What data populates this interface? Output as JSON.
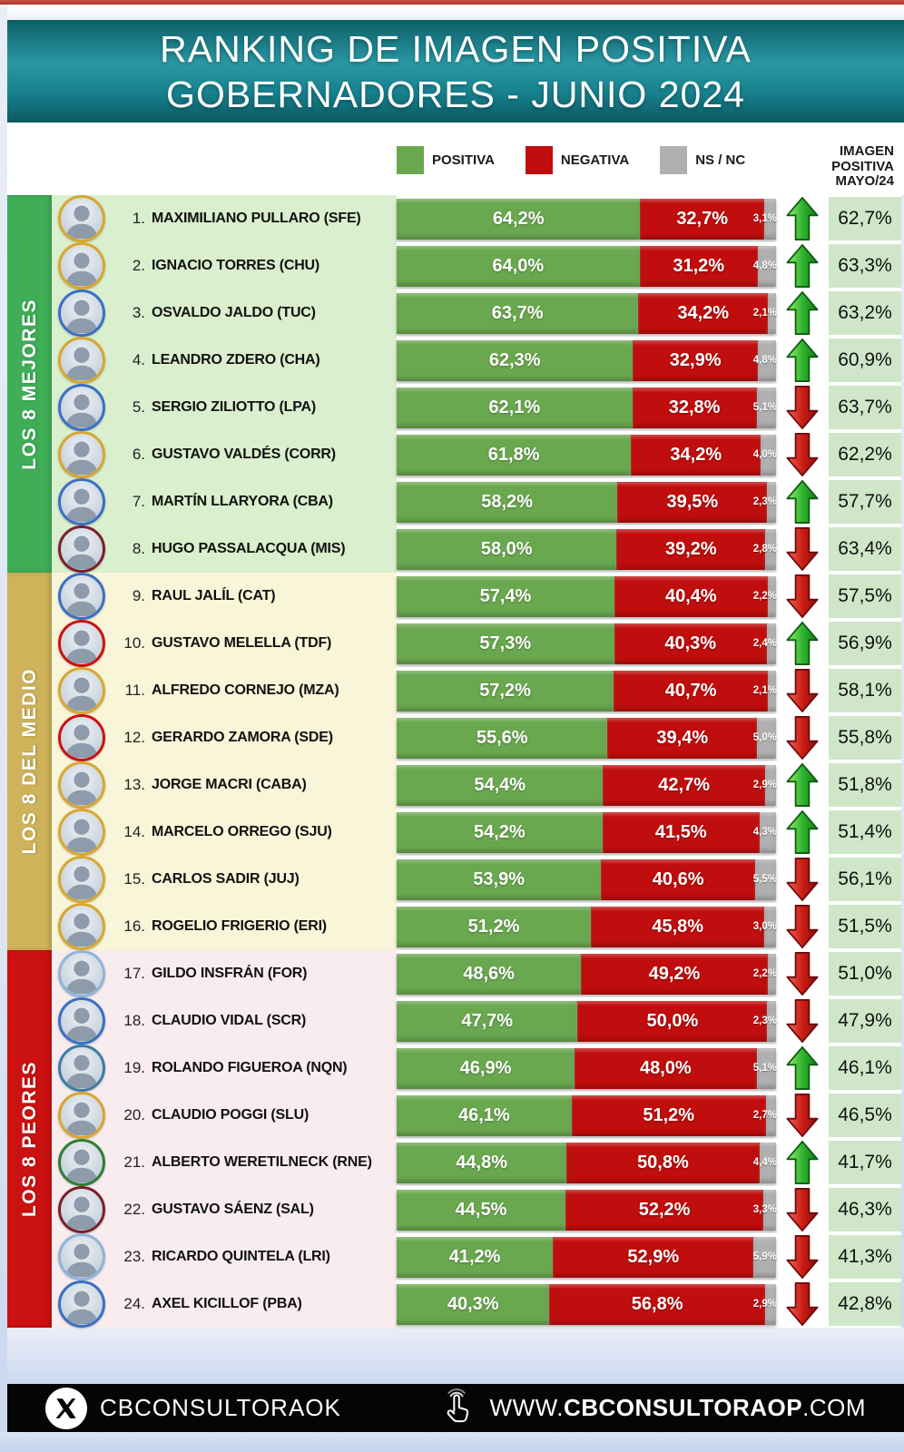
{
  "title": {
    "line1": "RANKING DE IMAGEN POSITIVA",
    "line2": "GOBERNADORES - JUNIO 2024"
  },
  "legend": [
    {
      "label": "POSITIVA",
      "color": "#6aa84f"
    },
    {
      "label": "NEGATIVA",
      "color": "#c00d0d"
    },
    {
      "label": "NS / NC",
      "color": "#b0b0b0"
    }
  ],
  "right_header": {
    "line1": "IMAGEN",
    "line2": "POSITIVA",
    "line3": "MAYO/24"
  },
  "groups": [
    {
      "label": "LOS 8 MEJORES",
      "band_color": "#3fae57",
      "row_bg": "#d9efcd"
    },
    {
      "label": "LOS 8 DEL MEDIO",
      "band_color": "#cfb35a",
      "row_bg": "#f8f5d8"
    },
    {
      "label": "LOS 8 PEORES",
      "band_color": "#cc1111",
      "row_bg": "#f8ecee"
    }
  ],
  "rows": [
    {
      "rank": "1.",
      "name": "MAXIMILIANO PULLARO (SFE)",
      "pos": "64,2%",
      "neg": "32,7%",
      "ns": "3,1%",
      "trend": "up",
      "mayo": "62,7%",
      "ring": "#d9a62e"
    },
    {
      "rank": "2.",
      "name": "IGNACIO TORRES (CHU)",
      "pos": "64,0%",
      "neg": "31,2%",
      "ns": "4,8%",
      "trend": "up",
      "mayo": "63,3%",
      "ring": "#d9a62e"
    },
    {
      "rank": "3.",
      "name": "OSVALDO JALDO (TUC)",
      "pos": "63,7%",
      "neg": "34,2%",
      "ns": "2,1%",
      "trend": "up",
      "mayo": "63,2%",
      "ring": "#3a6fc4"
    },
    {
      "rank": "4.",
      "name": "LEANDRO ZDERO (CHA)",
      "pos": "62,3%",
      "neg": "32,9%",
      "ns": "4,8%",
      "trend": "up",
      "mayo": "60,9%",
      "ring": "#d9a62e"
    },
    {
      "rank": "5.",
      "name": "SERGIO ZILIOTTO (LPA)",
      "pos": "62,1%",
      "neg": "32,8%",
      "ns": "5,1%",
      "trend": "down",
      "mayo": "63,7%",
      "ring": "#3a6fc4"
    },
    {
      "rank": "6.",
      "name": "GUSTAVO VALDÉS (CORR)",
      "pos": "61,8%",
      "neg": "34,2%",
      "ns": "4,0%",
      "trend": "down",
      "mayo": "62,2%",
      "ring": "#d9a62e"
    },
    {
      "rank": "7.",
      "name": "MARTÍN LLARYORA (CBA)",
      "pos": "58,2%",
      "neg": "39,5%",
      "ns": "2,3%",
      "trend": "up",
      "mayo": "57,7%",
      "ring": "#3a6fc4"
    },
    {
      "rank": "8.",
      "name": "HUGO PASSALACQUA (MIS)",
      "pos": "58,0%",
      "neg": "39,2%",
      "ns": "2,8%",
      "trend": "down",
      "mayo": "63,4%",
      "ring": "#7a1f2b"
    },
    {
      "rank": "9.",
      "name": "RAUL JALÍL (CAT)",
      "pos": "57,4%",
      "neg": "40,4%",
      "ns": "2,2%",
      "trend": "down",
      "mayo": "57,5%",
      "ring": "#3a6fc4"
    },
    {
      "rank": "10.",
      "name": "GUSTAVO MELELLA (TDF)",
      "pos": "57,3%",
      "neg": "40,3%",
      "ns": "2,4%",
      "trend": "up",
      "mayo": "56,9%",
      "ring": "#cc1111"
    },
    {
      "rank": "11.",
      "name": "ALFREDO CORNEJO (MZA)",
      "pos": "57,2%",
      "neg": "40,7%",
      "ns": "2,1%",
      "trend": "down",
      "mayo": "58,1%",
      "ring": "#d9a62e"
    },
    {
      "rank": "12.",
      "name": "GERARDO ZAMORA (SDE)",
      "pos": "55,6%",
      "neg": "39,4%",
      "ns": "5,0%",
      "trend": "down",
      "mayo": "55,8%",
      "ring": "#cc1111"
    },
    {
      "rank": "13.",
      "name": "JORGE MACRI (CABA)",
      "pos": "54,4%",
      "neg": "42,7%",
      "ns": "2,9%",
      "trend": "up",
      "mayo": "51,8%",
      "ring": "#d9a62e"
    },
    {
      "rank": "14.",
      "name": "MARCELO ORREGO (SJU)",
      "pos": "54,2%",
      "neg": "41,5%",
      "ns": "4,3%",
      "trend": "up",
      "mayo": "51,4%",
      "ring": "#d9a62e"
    },
    {
      "rank": "15.",
      "name": "CARLOS SADIR (JUJ)",
      "pos": "53,9%",
      "neg": "40,6%",
      "ns": "5,5%",
      "trend": "down",
      "mayo": "56,1%",
      "ring": "#d9a62e"
    },
    {
      "rank": "16.",
      "name": "ROGELIO FRIGERIO (ERI)",
      "pos": "51,2%",
      "neg": "45,8%",
      "ns": "3,0%",
      "trend": "down",
      "mayo": "51,5%",
      "ring": "#d9a62e"
    },
    {
      "rank": "17.",
      "name": "GILDO INSFRÁN (FOR)",
      "pos": "48,6%",
      "neg": "49,2%",
      "ns": "2,2%",
      "trend": "down",
      "mayo": "51,0%",
      "ring": "#8fb4dc"
    },
    {
      "rank": "18.",
      "name": "CLAUDIO VIDAL (SCR)",
      "pos": "47,7%",
      "neg": "50,0%",
      "ns": "2,3%",
      "trend": "down",
      "mayo": "47,9%",
      "ring": "#3a6fc4"
    },
    {
      "rank": "19.",
      "name": "ROLANDO FIGUEROA (NQN)",
      "pos": "46,9%",
      "neg": "48,0%",
      "ns": "5,1%",
      "trend": "up",
      "mayo": "46,1%",
      "ring": "#3a7ca8"
    },
    {
      "rank": "20.",
      "name": "CLAUDIO POGGI (SLU)",
      "pos": "46,1%",
      "neg": "51,2%",
      "ns": "2,7%",
      "trend": "down",
      "mayo": "46,5%",
      "ring": "#d9a62e"
    },
    {
      "rank": "21.",
      "name": "ALBERTO WERETILNECK (RNE)",
      "pos": "44,8%",
      "neg": "50,8%",
      "ns": "4,4%",
      "trend": "up",
      "mayo": "41,7%",
      "ring": "#2e7d32"
    },
    {
      "rank": "22.",
      "name": "GUSTAVO SÁENZ (SAL)",
      "pos": "44,5%",
      "neg": "52,2%",
      "ns": "3,3%",
      "trend": "down",
      "mayo": "46,3%",
      "ring": "#7a1f2b"
    },
    {
      "rank": "23.",
      "name": "RICARDO QUINTELA (LRI)",
      "pos": "41,2%",
      "neg": "52,9%",
      "ns": "5,9%",
      "trend": "down",
      "mayo": "41,3%",
      "ring": "#8fb4dc"
    },
    {
      "rank": "24.",
      "name": "AXEL KICILLOF (PBA)",
      "pos": "40,3%",
      "neg": "56,8%",
      "ns": "2,9%",
      "trend": "down",
      "mayo": "42,8%",
      "ring": "#3a6fc4"
    }
  ],
  "footer": {
    "handle": "CBCONSULTORAOK",
    "url_prefix": "WWW.",
    "url_bold": "CBCONSULTORAOP",
    "url_suffix": ".COM"
  },
  "chart_data": {
    "type": "bar",
    "orientation": "horizontal-stacked",
    "title": "RANKING DE IMAGEN POSITIVA GOBERNADORES - JUNIO 2024",
    "xlim": [
      0,
      100
    ],
    "legend_position": "top",
    "categories": [
      "MAXIMILIANO PULLARO (SFE)",
      "IGNACIO TORRES (CHU)",
      "OSVALDO JALDO (TUC)",
      "LEANDRO ZDERO (CHA)",
      "SERGIO ZILIOTTO (LPA)",
      "GUSTAVO VALDÉS (CORR)",
      "MARTÍN LLARYORA (CBA)",
      "HUGO PASSALACQUA (MIS)",
      "RAUL JALÍL (CAT)",
      "GUSTAVO MELELLA (TDF)",
      "ALFREDO CORNEJO (MZA)",
      "GERARDO ZAMORA (SDE)",
      "JORGE MACRI (CABA)",
      "MARCELO ORREGO (SJU)",
      "CARLOS SADIR (JUJ)",
      "ROGELIO FRIGERIO (ERI)",
      "GILDO INSFRÁN (FOR)",
      "CLAUDIO VIDAL (SCR)",
      "ROLANDO FIGUEROA (NQN)",
      "CLAUDIO POGGI (SLU)",
      "ALBERTO WERETILNECK (RNE)",
      "GUSTAVO SÁENZ (SAL)",
      "RICARDO QUINTELA (LRI)",
      "AXEL KICILLOF (PBA)"
    ],
    "series": [
      {
        "name": "POSITIVA",
        "color": "#6aa84f",
        "values": [
          64.2,
          64.0,
          63.7,
          62.3,
          62.1,
          61.8,
          58.2,
          58.0,
          57.4,
          57.3,
          57.2,
          55.6,
          54.4,
          54.2,
          53.9,
          51.2,
          48.6,
          47.7,
          46.9,
          46.1,
          44.8,
          44.5,
          41.2,
          40.3
        ]
      },
      {
        "name": "NEGATIVA",
        "color": "#c00d0d",
        "values": [
          32.7,
          31.2,
          34.2,
          32.9,
          32.8,
          34.2,
          39.5,
          39.2,
          40.4,
          40.3,
          40.7,
          39.4,
          42.7,
          41.5,
          40.6,
          45.8,
          49.2,
          50.0,
          48.0,
          51.2,
          50.8,
          52.2,
          52.9,
          56.8
        ]
      },
      {
        "name": "NS / NC",
        "color": "#b0b0b0",
        "values": [
          3.1,
          4.8,
          2.1,
          4.8,
          5.1,
          4.0,
          2.3,
          2.8,
          2.2,
          2.4,
          2.1,
          5.0,
          2.9,
          4.3,
          5.5,
          3.0,
          2.2,
          2.3,
          5.1,
          2.7,
          4.4,
          3.3,
          5.9,
          2.9
        ]
      }
    ],
    "comparison": {
      "name": "IMAGEN POSITIVA MAYO/24",
      "values": [
        62.7,
        63.3,
        63.2,
        60.9,
        63.7,
        62.2,
        57.7,
        63.4,
        57.5,
        56.9,
        58.1,
        55.8,
        51.8,
        51.4,
        56.1,
        51.5,
        51.0,
        47.9,
        46.1,
        46.5,
        41.7,
        46.3,
        41.3,
        42.8
      ]
    },
    "trend_vs_may": [
      "up",
      "up",
      "up",
      "up",
      "down",
      "down",
      "up",
      "down",
      "down",
      "up",
      "down",
      "down",
      "up",
      "up",
      "down",
      "down",
      "down",
      "down",
      "up",
      "down",
      "up",
      "down",
      "down",
      "down"
    ],
    "groups": [
      {
        "label": "LOS 8 MEJORES",
        "rows": [
          1,
          8
        ]
      },
      {
        "label": "LOS 8 DEL MEDIO",
        "rows": [
          9,
          16
        ]
      },
      {
        "label": "LOS 8 PEORES",
        "rows": [
          17,
          24
        ]
      }
    ]
  }
}
